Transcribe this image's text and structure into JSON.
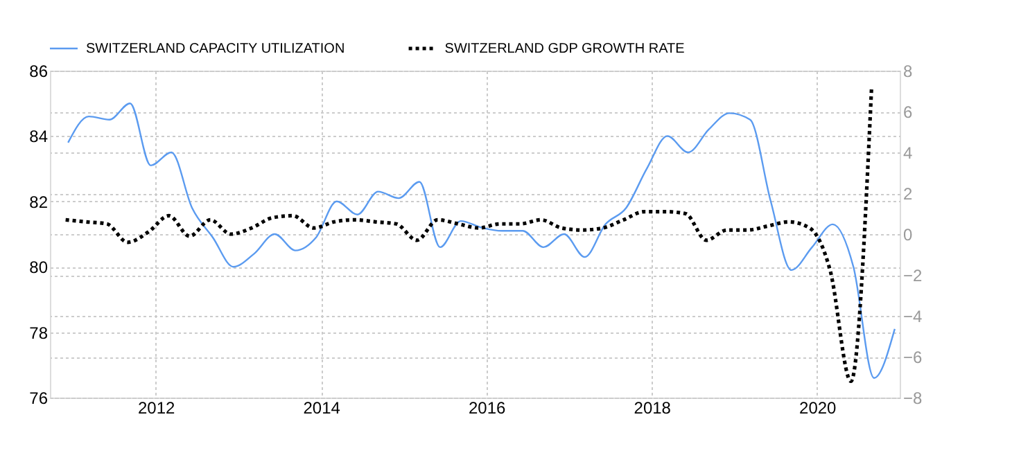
{
  "chart_data": {
    "type": "line",
    "xlim": [
      2010.72,
      2021.0
    ],
    "xticks": [
      2012,
      2014,
      2016,
      2018,
      2020
    ],
    "ylim": [
      76,
      86
    ],
    "yticks": [
      76,
      78,
      80,
      82,
      84,
      86
    ],
    "y2lim": [
      -8,
      8
    ],
    "y2ticks": [
      -8,
      -6,
      -4,
      -2,
      0,
      2,
      4,
      6,
      8
    ],
    "grid": true,
    "legend": "top left",
    "series": [
      {
        "name": "SWITZERLAND CAPACITY UTILIZATION",
        "color": "#5b9bf0",
        "line_style": "solid",
        "x": [
          2010.94,
          2011.19,
          2011.44,
          2011.69,
          2011.94,
          2012.19,
          2012.44,
          2012.69,
          2012.94,
          2013.19,
          2013.44,
          2013.69,
          2013.94,
          2014.19,
          2014.44,
          2014.69,
          2014.94,
          2015.19,
          2015.44,
          2015.69,
          2015.94,
          2016.19,
          2016.44,
          2016.69,
          2016.94,
          2017.19,
          2017.44,
          2017.69,
          2017.94,
          2018.19,
          2018.44,
          2018.69,
          2018.94,
          2019.19,
          2019.44,
          2019.69,
          2019.94,
          2020.19,
          2020.44,
          2020.69,
          2020.94
        ],
        "values": [
          83.8,
          84.6,
          84.5,
          85.0,
          83.1,
          83.5,
          81.8,
          80.9,
          80.0,
          80.4,
          81.0,
          80.5,
          80.9,
          82.0,
          81.6,
          82.3,
          82.1,
          82.6,
          80.6,
          81.4,
          81.2,
          81.1,
          81.1,
          80.6,
          81.0,
          80.3,
          81.3,
          81.8,
          83.0,
          84.0,
          83.5,
          84.2,
          84.7,
          84.5,
          82.0,
          79.9,
          80.6,
          81.3,
          80.0,
          76.6,
          78.1
        ]
      },
      {
        "name": "SWITZERLAND GDP GROWTH RATE",
        "color": "#000000",
        "line_style": "dotted",
        "axis": "y2",
        "x": [
          2010.91,
          2011.16,
          2011.41,
          2011.66,
          2011.91,
          2012.16,
          2012.41,
          2012.66,
          2012.91,
          2013.16,
          2013.41,
          2013.66,
          2013.91,
          2014.16,
          2014.41,
          2014.66,
          2014.91,
          2015.16,
          2015.41,
          2015.66,
          2015.91,
          2016.16,
          2016.41,
          2016.66,
          2016.91,
          2017.16,
          2017.41,
          2017.66,
          2017.91,
          2018.16,
          2018.41,
          2018.66,
          2018.91,
          2019.16,
          2019.41,
          2019.66,
          2019.91,
          2020.16,
          2020.41,
          2020.66
        ],
        "values": [
          0.7,
          0.6,
          0.5,
          -0.4,
          0.1,
          0.9,
          -0.1,
          0.7,
          0.0,
          0.3,
          0.8,
          0.9,
          0.3,
          0.6,
          0.7,
          0.6,
          0.5,
          -0.3,
          0.7,
          0.5,
          0.3,
          0.5,
          0.5,
          0.7,
          0.3,
          0.2,
          0.3,
          0.7,
          1.1,
          1.1,
          1.0,
          -0.3,
          0.2,
          0.2,
          0.4,
          0.6,
          0.3,
          -1.8,
          -7.2,
          7.2
        ]
      }
    ]
  }
}
